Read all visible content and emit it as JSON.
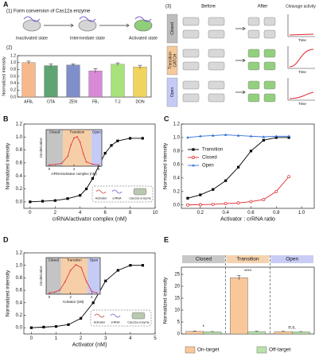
{
  "figure": {
    "panels": [
      "A",
      "B",
      "C",
      "D",
      "E"
    ],
    "a1_title": "(1) Form conversion of Cas12a enzyme",
    "states": [
      "Inactivated state",
      "Intermediate state",
      "Activated state"
    ],
    "a2_label": "(2)",
    "a3_label": "(3)",
    "a3_headers": [
      "Before",
      "After",
      "Cleavage activity"
    ],
    "a3_rows": [
      "Closed",
      "Transition",
      "Open"
    ],
    "catch_label": "CATCH",
    "time_label": "Time",
    "complex_legend": [
      "Activator",
      "crRNA",
      "Cas12a enzyme"
    ]
  },
  "chart_data": [
    {
      "type": "bar",
      "ylabel": "Normalized intensity",
      "categories": [
        "AFB₁",
        "OTA",
        "ZEN",
        "FB₁",
        "T-2",
        "DON"
      ],
      "values": [
        1.0,
        0.91,
        0.93,
        0.76,
        0.95,
        0.87
      ],
      "errors": [
        0.04,
        0.05,
        0.03,
        0.06,
        0.04,
        0.05
      ],
      "colors": [
        "#f7b98b",
        "#5fa472",
        "#7f8fc9",
        "#d88ad6",
        "#a8e27b",
        "#f1d45e"
      ],
      "ylim": [
        0,
        1.2
      ],
      "yticks": [
        {
          "value": 0,
          "label": "0.0"
        },
        0.2,
        0.4,
        0.6,
        0.8,
        {
          "value": 1,
          "label": "1.0"
        },
        1.2
      ]
    },
    {
      "type": "line",
      "xlabel": "crRNA/activator complex (nM)",
      "ylabel": "Normalized intensity",
      "x": [
        0,
        1,
        2,
        3,
        4,
        4.5,
        5,
        5.5,
        6,
        6.5,
        7,
        8,
        9
      ],
      "series": [
        {
          "color": "#000000",
          "marker": "square",
          "values": [
            0,
            0.01,
            0.02,
            0.05,
            0.1,
            0.2,
            0.36,
            0.56,
            0.75,
            0.87,
            0.94,
            0.98,
            0.98
          ]
        }
      ],
      "xlim": [
        -0.5,
        10
      ],
      "ylim": [
        -0.1,
        1.2
      ],
      "xticks": [
        0,
        2,
        4,
        6,
        8,
        10
      ],
      "yticks": [
        {
          "value": 0,
          "label": "0.0"
        },
        0.2,
        0.4,
        0.6,
        0.8,
        {
          "value": 1,
          "label": "1.0"
        },
        1.2
      ]
    },
    {
      "type": "line",
      "xlabel": "crRNA/activator complex (nM)",
      "ylabel": "1st derivative",
      "x": [
        0,
        1,
        2,
        3,
        3.5,
        4,
        4.5,
        5,
        5.5,
        6,
        7,
        8
      ],
      "series": [
        {
          "color": "#e0262a",
          "marker": "circle",
          "values": [
            0,
            0.01,
            0.05,
            0.3,
            0.7,
            0.95,
            1.0,
            0.8,
            0.4,
            0.1,
            0.02,
            0
          ]
        }
      ],
      "xlim": [
        -0.5,
        8.5
      ],
      "ylim": [
        -0.05,
        1.25
      ],
      "xticks": [
        0,
        4,
        8
      ],
      "yticks": [],
      "regions": [
        {
          "label": "Closed",
          "span": [
            -0.5,
            2.2
          ],
          "color": "#c4c4c4"
        },
        {
          "label": "Transition",
          "span": [
            2.2,
            6.8
          ],
          "color": "#f6cfa8"
        },
        {
          "label": "Open",
          "span": [
            6.8,
            8.5
          ],
          "color": "#c5cbf5"
        }
      ]
    },
    {
      "type": "line",
      "xlabel": "Activator : crRNA ratio",
      "ylabel": "Normalized intensity",
      "x": [
        0.1,
        0.2,
        0.3,
        0.4,
        0.5,
        0.6,
        0.7,
        0.8,
        0.9
      ],
      "series": [
        {
          "name": "Transition",
          "color": "#000000",
          "marker": "square",
          "values": [
            0.1,
            0.15,
            0.23,
            0.36,
            0.56,
            0.8,
            0.96,
            1.0,
            1.0
          ]
        },
        {
          "name": "Closed",
          "color": "#e0262a",
          "marker": "circle-open",
          "values": [
            0,
            0.005,
            0.01,
            0.02,
            0.03,
            0.05,
            0.08,
            0.2,
            0.42
          ]
        },
        {
          "name": "Open",
          "color": "#2f6fd6",
          "marker": "triangle",
          "values": [
            1.0,
            1.02,
            1.03,
            1.04,
            1.03,
            1.02,
            1.01,
            1.02,
            1.02
          ]
        }
      ],
      "xlim": [
        0.05,
        1.1
      ],
      "ylim": [
        -0.05,
        1.2
      ],
      "xticks": [
        0.2,
        0.4,
        0.6,
        0.8,
        {
          "value": 1,
          "label": "1.0"
        }
      ],
      "yticks": [
        {
          "value": 0,
          "label": "0.0"
        },
        0.2,
        0.4,
        0.6,
        0.8,
        {
          "value": 1,
          "label": "1.0"
        },
        1.2
      ],
      "legend": "center-left"
    },
    {
      "type": "line",
      "xlabel": "Activator (nM)",
      "ylabel": "Normalized intensity",
      "x": [
        0,
        0.5,
        1,
        1.5,
        2,
        2.5,
        3,
        3.5,
        4,
        4.5
      ],
      "series": [
        {
          "color": "#000000",
          "marker": "square",
          "values": [
            0,
            0.01,
            0.02,
            0.05,
            0.15,
            0.4,
            0.75,
            0.92,
            1.0,
            1.0
          ]
        }
      ],
      "xlim": [
        -0.3,
        5
      ],
      "ylim": [
        -0.1,
        1.2
      ],
      "xticks": [
        0,
        1,
        2,
        3,
        4,
        5
      ],
      "yticks": [
        {
          "value": 0,
          "label": "0.0"
        },
        0.2,
        0.4,
        0.6,
        0.8,
        {
          "value": 1,
          "label": "1.0"
        },
        1.2
      ]
    },
    {
      "type": "line",
      "xlabel": "Activator (nM)",
      "ylabel": "1st derivative",
      "x": [
        0,
        0.5,
        1,
        1.5,
        2,
        2.5,
        3,
        3.5,
        4,
        4.5
      ],
      "series": [
        {
          "color": "#e0262a",
          "marker": "circle",
          "values": [
            0,
            0.02,
            0.1,
            0.4,
            0.8,
            1.0,
            0.9,
            0.4,
            0.05,
            0
          ]
        }
      ],
      "xlim": [
        -0.3,
        4.8
      ],
      "ylim": [
        -0.05,
        1.25
      ],
      "xticks": [
        0,
        2,
        4
      ],
      "yticks": [],
      "regions": [
        {
          "label": "Closed",
          "span": [
            -0.3,
            1.1
          ],
          "color": "#c4c4c4"
        },
        {
          "label": "Transition",
          "span": [
            1.1,
            3.6
          ],
          "color": "#f6cfa8"
        },
        {
          "label": "Open",
          "span": [
            3.6,
            4.8
          ],
          "color": "#c5cbf5"
        }
      ]
    },
    {
      "type": "bar",
      "ylabel": "Normalized intensity",
      "categories": [
        "Closed",
        "Transition",
        "Open"
      ],
      "category_colors": [
        "#c8c8c8",
        "#f5d3b0",
        "#c9cdf5"
      ],
      "series": [
        {
          "name": "On-target",
          "color": "#f9c89a",
          "values": [
            1.1,
            23.6,
            1.0
          ],
          "errors": [
            0.1,
            0.9,
            0.1
          ]
        },
        {
          "name": "Off-target",
          "color": "#b9e2ab",
          "values": [
            0.9,
            1.0,
            0.9
          ],
          "errors": [
            0.1,
            0.15,
            0.1
          ]
        }
      ],
      "significance": [
        "*",
        "****",
        "n.s."
      ],
      "ylim": [
        0,
        28
      ],
      "yticks": [
        0,
        5,
        10,
        15,
        20,
        25
      ],
      "legend": "bottom"
    }
  ]
}
